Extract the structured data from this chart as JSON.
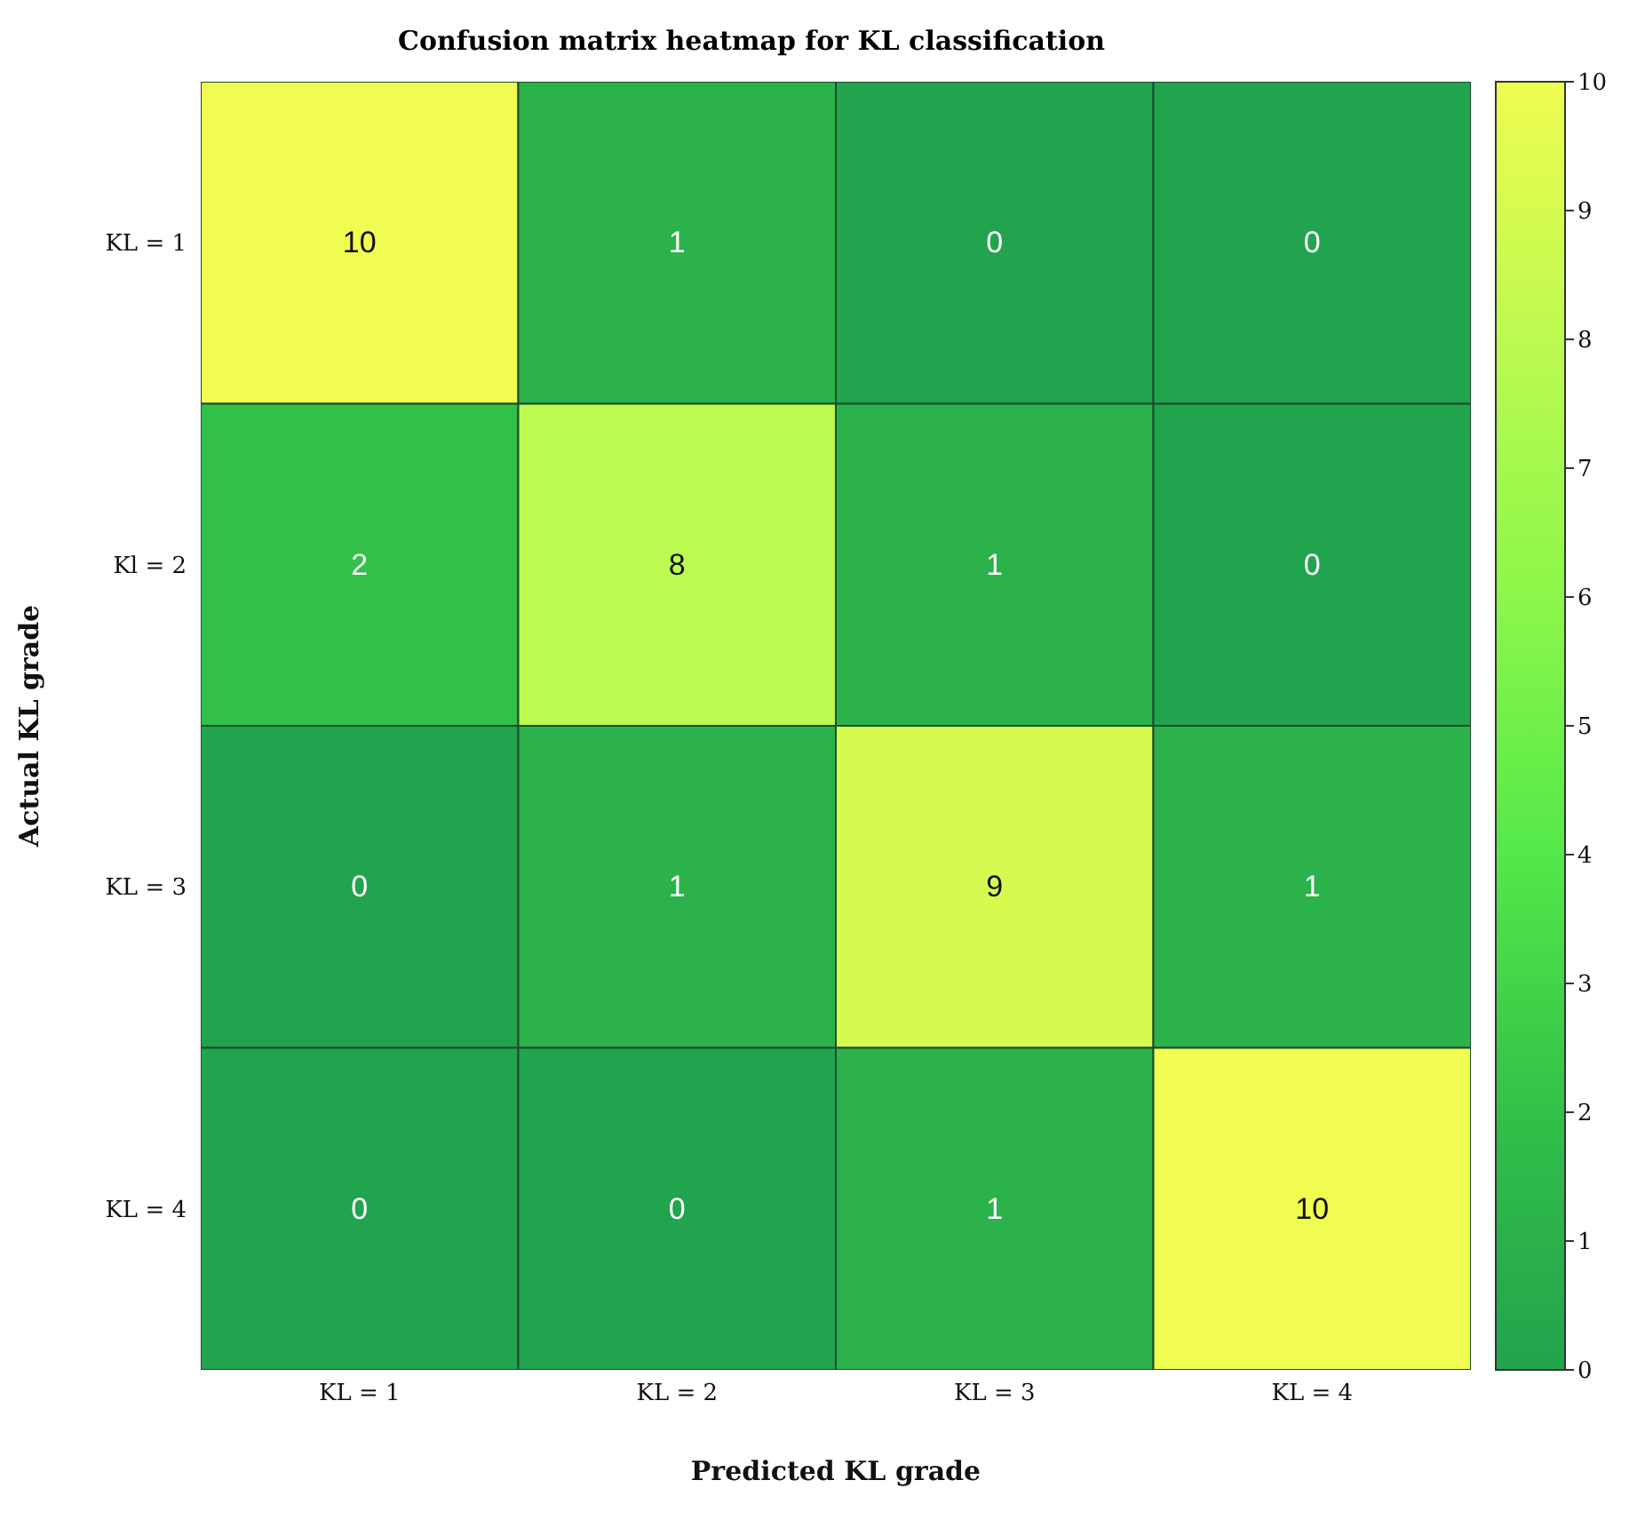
{
  "chart_data": {
    "type": "heatmap",
    "title": "Confusion matrix heatmap for KL classification",
    "xlabel": "Predicted KL grade",
    "ylabel": "Actual KL grade",
    "categories": [
      "KL = 1",
      "KL = 2",
      "KL = 3",
      "KL = 4"
    ],
    "y_categories": [
      "KL = 1",
      "Kl = 2",
      "KL = 3",
      "KL = 4"
    ],
    "cells": [
      [
        10,
        1,
        0,
        0
      ],
      [
        2,
        8,
        1,
        0
      ],
      [
        0,
        1,
        9,
        1
      ],
      [
        0,
        0,
        1,
        10
      ]
    ],
    "data_labels": true,
    "clim": [
      0,
      10
    ],
    "cticks": [
      0,
      1,
      2,
      3,
      4,
      5,
      6,
      7,
      8,
      9,
      10
    ]
  }
}
